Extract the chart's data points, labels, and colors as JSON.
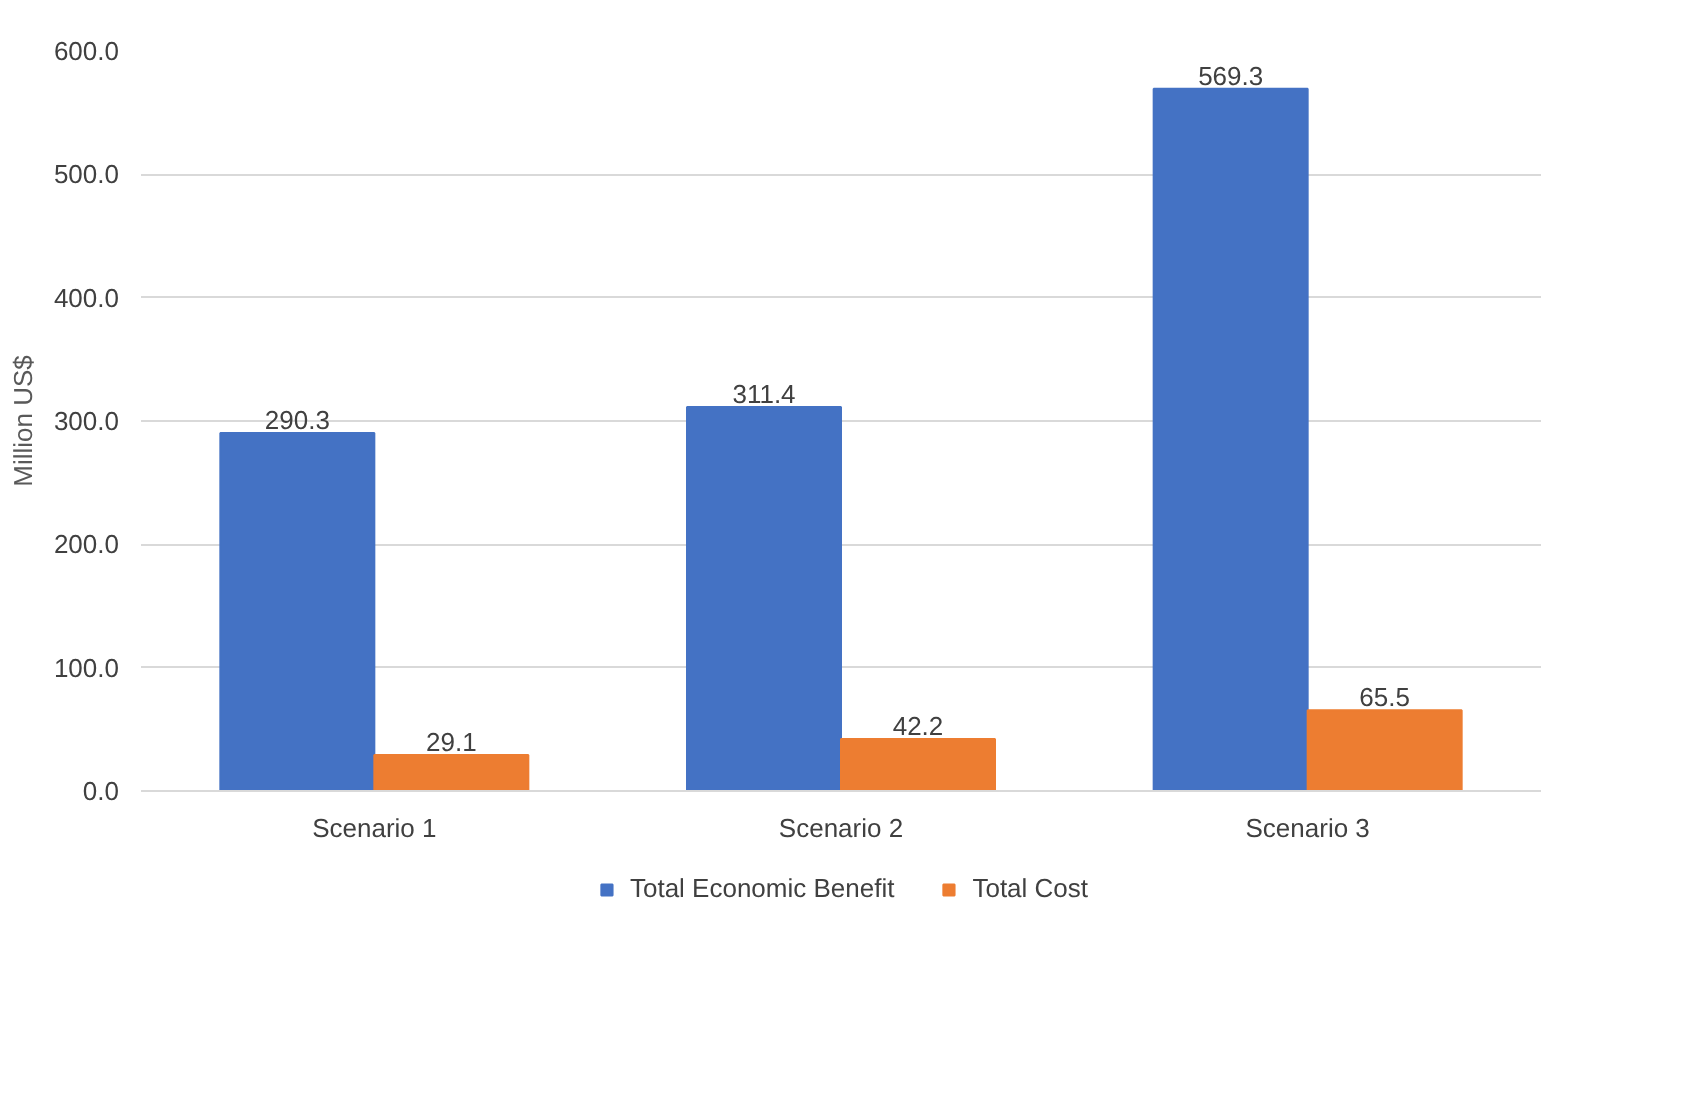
{
  "chart_data": {
    "type": "bar",
    "ylabel": "Million US$",
    "categories": [
      "Scenario 1",
      "Scenario 2",
      "Scenario 3"
    ],
    "series": [
      {
        "name": "Total Economic Benefit",
        "color": "#4472c4",
        "values": [
          290.3,
          311.4,
          569.3
        ]
      },
      {
        "name": "Total Cost",
        "color": "#ed7d31",
        "values": [
          29.1,
          42.2,
          65.5
        ]
      }
    ],
    "ylim": [
      0,
      600
    ],
    "yticks": [
      {
        "value": 0,
        "label": "0.0"
      },
      {
        "value": 100,
        "label": "100.0"
      },
      {
        "value": 200,
        "label": "200.0"
      },
      {
        "value": 300,
        "label": "300.0"
      },
      {
        "value": 400,
        "label": "400.0"
      },
      {
        "value": 500,
        "label": "500.0"
      },
      {
        "value": 600,
        "label": "600.0"
      }
    ],
    "grid": "y",
    "legend": "bottom",
    "data_labels": true
  }
}
